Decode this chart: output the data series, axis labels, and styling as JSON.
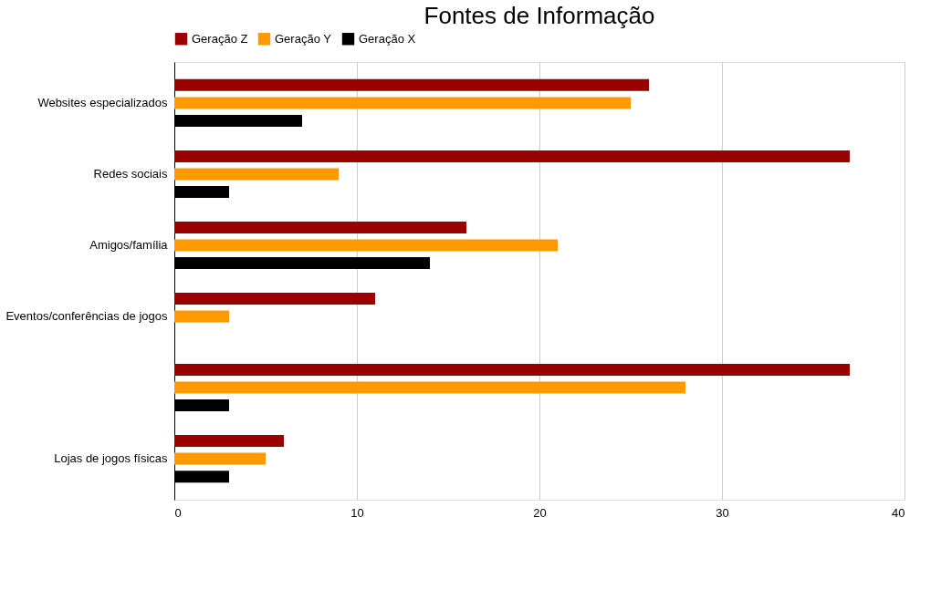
{
  "chart_data": {
    "type": "bar",
    "orientation": "horizontal",
    "title": "Fontes de Informação",
    "categories": [
      "Websites especializados",
      "Redes sociais",
      "Amigos/família",
      "Eventos/conferências de jogos",
      null,
      "Lojas de jogos físicas"
    ],
    "series": [
      {
        "name": "Geração Z",
        "color": "#990000",
        "values": [
          26,
          37,
          16,
          11,
          37,
          6
        ]
      },
      {
        "name": "Geração Y",
        "color": "#ff9900",
        "values": [
          25,
          9,
          21,
          3,
          28,
          5
        ]
      },
      {
        "name": "Geração X",
        "color": "#000000",
        "values": [
          7,
          3,
          14,
          null,
          3,
          3
        ]
      }
    ],
    "xlim": [
      0,
      40
    ],
    "xticks": [
      0,
      10,
      20,
      30,
      40
    ],
    "grid": "x",
    "legend": "top"
  }
}
